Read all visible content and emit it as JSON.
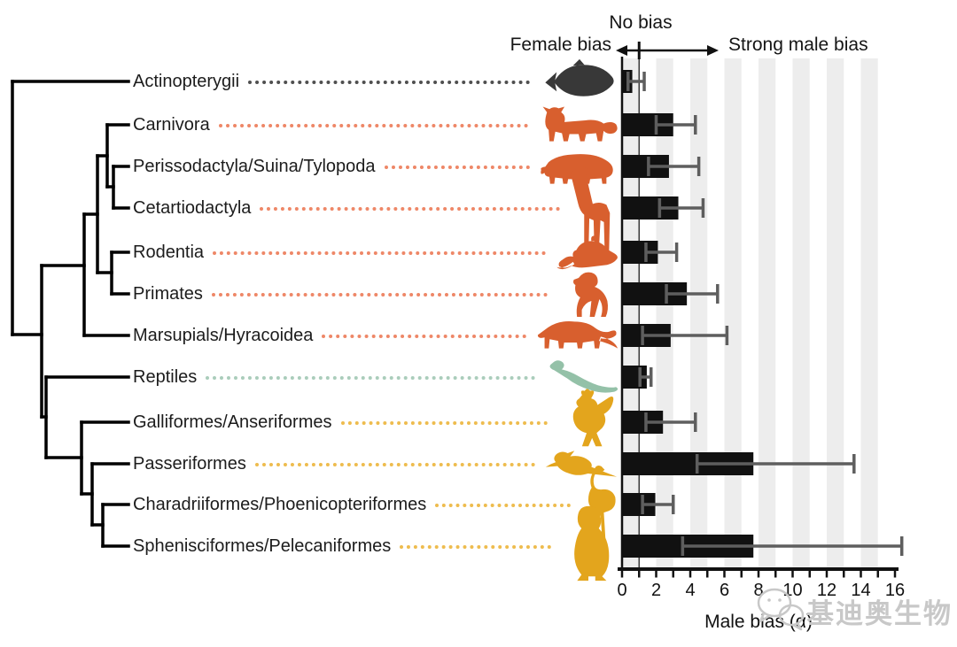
{
  "header": {
    "female_bias": "Female bias",
    "no_bias": "No bias",
    "strong_male_bias": "Strong male bias"
  },
  "watermark": {
    "icon": "wechat-icon",
    "text": "基迪奥生物"
  },
  "colors": {
    "bar": "#111111",
    "whisker": "#5e5e5e",
    "stripe": "#ededed",
    "axis": "#111111",
    "reference_line": "#3a3a3a",
    "tree": "#000000",
    "label_text": "#1c1c1c",
    "watermark": "#c8c8c8",
    "groups": {
      "fish": {
        "icon": "#383838",
        "dots": "#4f4f4f"
      },
      "mammal": {
        "icon": "#d85f2e",
        "dots": "#ee8767"
      },
      "reptile": {
        "icon": "#94c1a8",
        "dots": "#aacdbb"
      },
      "bird": {
        "icon": "#e3a51d",
        "dots": "#eebc4e"
      }
    }
  },
  "taxa": [
    {
      "label": "Actinopterygii",
      "group": "fish",
      "icon": "fish-icon",
      "alpha": 0.6,
      "ci": [
        0.35,
        1.3
      ]
    },
    {
      "label": "Carnivora",
      "group": "mammal",
      "icon": "feline-icon",
      "alpha": 3.0,
      "ci": [
        2.0,
        4.3
      ]
    },
    {
      "label": "Perissodactyla/Suina/Tylopoda",
      "group": "mammal",
      "icon": "tapir-icon",
      "alpha": 2.75,
      "ci": [
        1.55,
        4.5
      ]
    },
    {
      "label": "Cetartiodactyla",
      "group": "mammal",
      "icon": "giraffe-icon",
      "alpha": 3.3,
      "ci": [
        2.2,
        4.75
      ]
    },
    {
      "label": "Rodentia",
      "group": "mammal",
      "icon": "mouse-icon",
      "alpha": 2.1,
      "ci": [
        1.4,
        3.2
      ]
    },
    {
      "label": "Primates",
      "group": "mammal",
      "icon": "chimpanzee-icon",
      "alpha": 3.8,
      "ci": [
        2.6,
        5.6
      ]
    },
    {
      "label": "Marsupials/Hyracoidea",
      "group": "mammal",
      "icon": "opossum-icon",
      "alpha": 2.85,
      "ci": [
        1.2,
        6.15
      ]
    },
    {
      "label": "Reptiles",
      "group": "reptile",
      "icon": "lizard-icon",
      "alpha": 1.45,
      "ci": [
        1.05,
        1.7
      ]
    },
    {
      "label": "Galliformes/Anseriformes",
      "group": "bird",
      "icon": "rooster-icon",
      "alpha": 2.4,
      "ci": [
        1.4,
        4.3
      ]
    },
    {
      "label": "Passeriformes",
      "group": "bird",
      "icon": "songbird-icon",
      "alpha": 7.7,
      "ci": [
        4.4,
        13.6
      ]
    },
    {
      "label": "Charadriiformes/Phoenicopteriformes",
      "group": "bird",
      "icon": "flamingo-icon",
      "alpha": 1.95,
      "ci": [
        1.2,
        3.0
      ]
    },
    {
      "label": "Sphenisciformes/Pelecaniformes",
      "group": "bird",
      "icon": "penguin-icon",
      "alpha": 7.7,
      "ci": [
        3.55,
        16.4
      ]
    }
  ],
  "chart_data": {
    "type": "bar",
    "orientation": "horizontal",
    "title": "",
    "categories": [
      "Actinopterygii",
      "Carnivora",
      "Perissodactyla/Suina/Tylopoda",
      "Cetartiodactyla",
      "Rodentia",
      "Primates",
      "Marsupials/Hyracoidea",
      "Reptiles",
      "Galliformes/Anseriformes",
      "Passeriformes",
      "Charadriiformes/Phoenicopteriformes",
      "Sphenisciformes/Pelecaniformes"
    ],
    "values": [
      0.6,
      3.0,
      2.75,
      3.3,
      2.1,
      3.8,
      2.85,
      1.45,
      2.4,
      7.7,
      1.95,
      7.7
    ],
    "error_low": [
      0.35,
      2.0,
      1.55,
      2.2,
      1.4,
      2.6,
      1.2,
      1.05,
      1.4,
      4.4,
      1.2,
      3.55
    ],
    "error_high": [
      1.3,
      4.3,
      4.5,
      4.75,
      3.2,
      5.6,
      6.15,
      1.7,
      4.3,
      13.6,
      3.0,
      16.4
    ],
    "xlabel": "Male bias (α)",
    "xlim": [
      0,
      16
    ],
    "x_ticks": [
      0,
      2,
      4,
      6,
      8,
      10,
      12,
      14,
      16
    ],
    "minor_ticks_every": 1,
    "reference_line_x": 1,
    "grid": "alternating-vertical-stripes",
    "legend": "none"
  }
}
